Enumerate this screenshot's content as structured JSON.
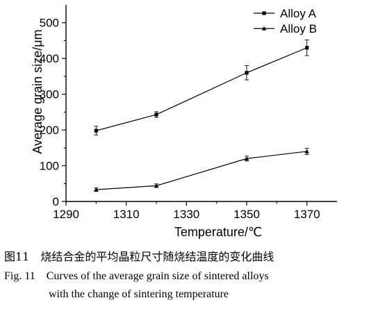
{
  "chart_data": {
    "type": "line",
    "title": "",
    "xlabel": "Temperature/℃",
    "ylabel": "Average grain size/μm",
    "xlim": [
      1290,
      1380
    ],
    "ylim": [
      0,
      550
    ],
    "x_ticks": [
      1290,
      1310,
      1330,
      1350,
      1370
    ],
    "y_ticks": [
      0,
      100,
      200,
      300,
      400,
      500
    ],
    "x": [
      1300,
      1320,
      1350,
      1370
    ],
    "series": [
      {
        "name": "Alloy A",
        "marker": "square",
        "values": [
          198,
          243,
          360,
          430
        ],
        "errors": [
          12,
          8,
          20,
          22
        ]
      },
      {
        "name": "Alloy B",
        "marker": "triangle",
        "values": [
          33,
          44,
          120,
          140
        ],
        "errors": [
          5,
          5,
          7,
          9
        ]
      }
    ],
    "legend_position": "top-right",
    "grid": false
  },
  "caption": {
    "zh": "图11　烧结合金的平均晶粒尺寸随烧结温度的变化曲线",
    "en_line1": "Fig. 11　Curves of the average grain size of sintered alloys",
    "en_line2": "with the change of sintering temperature"
  }
}
